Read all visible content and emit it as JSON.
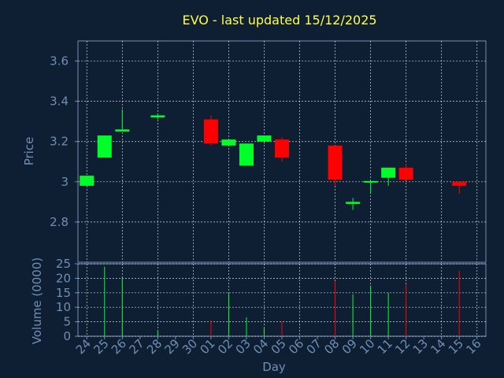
{
  "chart_data": {
    "type": "candlestick",
    "title": "EVO - last updated 15/12/2025",
    "xlabel": "Day",
    "price_panel": {
      "ylabel": "Price",
      "yticks": [
        "2.8",
        "3",
        "3.2",
        "3.4",
        "3.6"
      ],
      "ylim": [
        2.6,
        3.7
      ],
      "grid": true
    },
    "volume_panel": {
      "ylabel": "Volume (0000)",
      "yticks": [
        "0",
        "5",
        "10",
        "15",
        "20",
        "25"
      ],
      "ylim": [
        0,
        25
      ],
      "grid": true
    },
    "x_tick_labels": [
      "24",
      "25",
      "26",
      "27",
      "28",
      "29",
      "30",
      "01",
      "02",
      "03",
      "04",
      "05",
      "06",
      "07",
      "08",
      "09",
      "10",
      "11",
      "12",
      "13",
      "14",
      "15",
      "16"
    ],
    "candles": [
      {
        "day": "24",
        "open": 2.98,
        "close": 3.03,
        "high": 3.03,
        "low": 2.98,
        "volume": 0
      },
      {
        "day": "25",
        "open": 3.12,
        "close": 3.23,
        "high": 3.23,
        "low": 3.12,
        "volume": 24
      },
      {
        "day": "26",
        "open": 3.25,
        "close": 3.26,
        "high": 3.36,
        "low": 3.25,
        "volume": 20.5
      },
      {
        "day": "28",
        "open": 3.32,
        "close": 3.33,
        "high": 3.34,
        "low": 3.31,
        "volume": 2
      },
      {
        "day": "01",
        "open": 3.31,
        "close": 3.19,
        "high": 3.33,
        "low": 3.18,
        "volume": 5.5
      },
      {
        "day": "02",
        "open": 3.18,
        "close": 3.21,
        "high": 3.21,
        "low": 3.18,
        "volume": 15
      },
      {
        "day": "03",
        "open": 3.08,
        "close": 3.19,
        "high": 3.19,
        "low": 3.08,
        "volume": 6.5
      },
      {
        "day": "04",
        "open": 3.2,
        "close": 3.23,
        "high": 3.23,
        "low": 3.19,
        "volume": 3
      },
      {
        "day": "05",
        "open": 3.21,
        "close": 3.12,
        "high": 3.22,
        "low": 3.1,
        "volume": 5
      },
      {
        "day": "08",
        "open": 3.18,
        "close": 3.01,
        "high": 3.18,
        "low": 2.98,
        "volume": 19
      },
      {
        "day": "09",
        "open": 2.89,
        "close": 2.9,
        "high": 2.92,
        "low": 2.86,
        "volume": 14.5
      },
      {
        "day": "10",
        "open": 3.0,
        "close": 3.0,
        "high": 3.01,
        "low": 2.94,
        "volume": 17.5
      },
      {
        "day": "11",
        "open": 3.02,
        "close": 3.07,
        "high": 3.07,
        "low": 2.98,
        "volume": 15
      },
      {
        "day": "12",
        "open": 3.07,
        "close": 3.01,
        "high": 3.09,
        "low": 3.01,
        "volume": 18
      },
      {
        "day": "15",
        "open": 3.0,
        "close": 2.98,
        "high": 3.0,
        "low": 2.94,
        "volume": 22.5
      }
    ]
  },
  "colors": {
    "background": "#0f1f33",
    "axis": "#6f8fb3",
    "grid": "#ffffff",
    "title": "#ffff44",
    "up": "#00ff2a",
    "down": "#ff0000"
  }
}
